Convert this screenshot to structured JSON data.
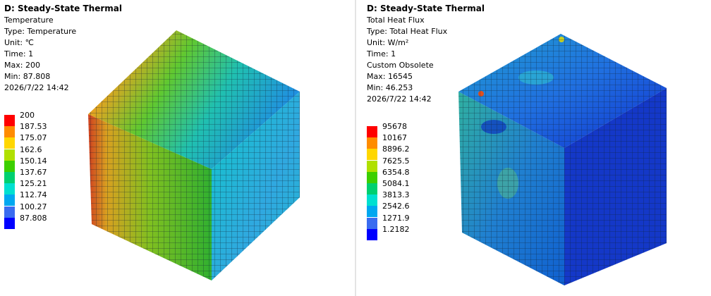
{
  "panels": [
    {
      "title": "D: Steady-State Thermal",
      "info": [
        "Temperature",
        "Type: Temperature",
        "Unit: ℃",
        "Time: 1",
        "Max: 200",
        "Min: 87.808",
        "2026/7/22 14:42"
      ],
      "legend": [
        {
          "label": "200",
          "color": "#ff0000"
        },
        {
          "label": "187.53",
          "color": "#ff8c00"
        },
        {
          "label": "175.07",
          "color": "#ffd700"
        },
        {
          "label": "162.6",
          "color": "#b0e000"
        },
        {
          "label": "150.14",
          "color": "#3ccf00"
        },
        {
          "label": "137.67",
          "color": "#00d070"
        },
        {
          "label": "125.21",
          "color": "#00e0d0"
        },
        {
          "label": "112.74",
          "color": "#00a8f0"
        },
        {
          "label": "100.27",
          "color": "#3a6cf0"
        },
        {
          "label": "87.808",
          "color": "#0000ff"
        }
      ]
    },
    {
      "title": "D: Steady-State Thermal",
      "info": [
        "Total Heat Flux",
        "Type: Total Heat Flux",
        "Unit: W/m²",
        "Time: 1",
        "Custom Obsolete",
        "Max: 16545",
        "Min: 46.253",
        "2026/7/22 14:42"
      ],
      "legend": [
        {
          "label": "95678",
          "color": "#ff0000"
        },
        {
          "label": "10167",
          "color": "#ff8c00"
        },
        {
          "label": "8896.2",
          "color": "#ffd700"
        },
        {
          "label": "7625.5",
          "color": "#b0e000"
        },
        {
          "label": "6354.8",
          "color": "#3ccf00"
        },
        {
          "label": "5084.1",
          "color": "#00d070"
        },
        {
          "label": "3813.3",
          "color": "#00e0d0"
        },
        {
          "label": "2542.6",
          "color": "#00a8f0"
        },
        {
          "label": "1271.9",
          "color": "#3a6cf0"
        },
        {
          "label": "1.2182",
          "color": "#0000ff"
        }
      ]
    }
  ]
}
